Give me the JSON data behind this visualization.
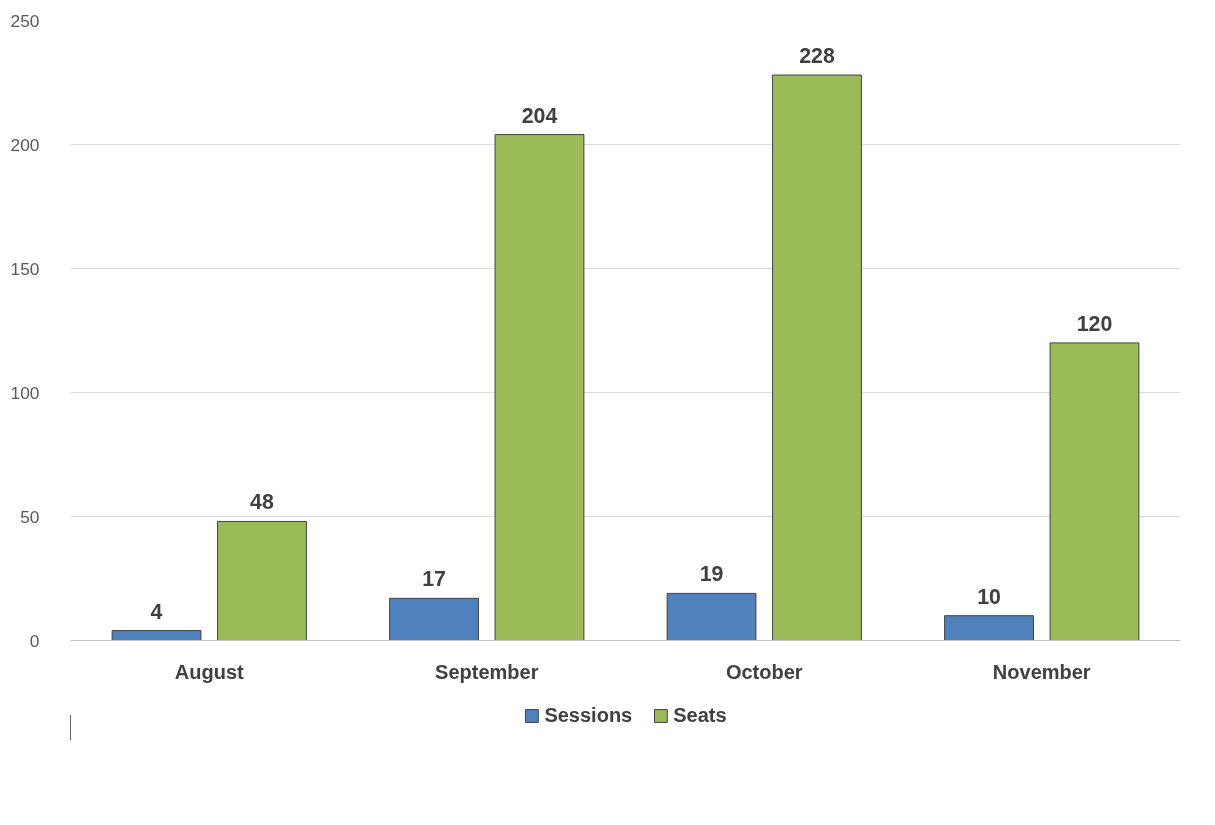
{
  "chart_data": {
    "type": "bar",
    "categories": [
      "August",
      "September",
      "October",
      "November"
    ],
    "series": [
      {
        "name": "Sessions",
        "color": "#4f81bd",
        "values": [
          4,
          17,
          19,
          10
        ]
      },
      {
        "name": "Seats",
        "color": "#9bbb59",
        "values": [
          48,
          204,
          228,
          120
        ]
      }
    ],
    "ylim": [
      0,
      250
    ],
    "yticks": [
      0,
      50,
      100,
      150,
      200,
      250
    ],
    "grid": "y",
    "legend": "bottom",
    "data_labels": true
  }
}
